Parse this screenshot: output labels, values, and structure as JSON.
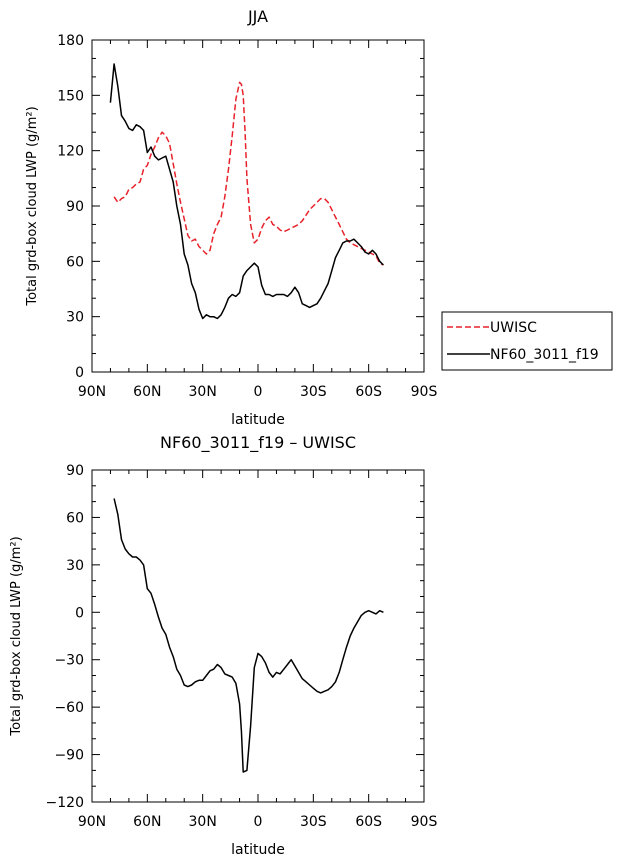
{
  "chart_data": [
    {
      "type": "line",
      "title": "JJA",
      "xlabel": "latitude",
      "ylabel": "Total grd-box cloud LWP (g/m²)",
      "xlim": [
        90,
        -90
      ],
      "ylim": [
        0,
        180
      ],
      "xticks": [
        90,
        60,
        30,
        0,
        -30,
        -60,
        -90
      ],
      "xtick_labels": [
        "90N",
        "60N",
        "30N",
        "0",
        "30S",
        "60S",
        "90S"
      ],
      "yticks": [
        0,
        30,
        60,
        90,
        120,
        150,
        180
      ],
      "ytick_labels": [
        "0",
        "30",
        "60",
        "90",
        "120",
        "150",
        "180"
      ],
      "legend_position": "right",
      "series": [
        {
          "name": "UWISC",
          "color": "#e8222a",
          "dash": "dashed",
          "x": [
            78,
            76,
            74,
            72,
            70,
            68,
            66,
            64,
            62,
            60,
            58,
            56,
            54,
            52,
            50,
            48,
            46,
            44,
            42,
            40,
            38,
            36,
            34,
            32,
            30,
            28,
            26,
            24,
            22,
            20,
            18,
            16,
            14,
            12,
            10,
            9,
            8,
            7,
            6,
            4,
            2,
            0,
            -2,
            -4,
            -6,
            -8,
            -10,
            -12,
            -14,
            -16,
            -18,
            -20,
            -22,
            -24,
            -26,
            -28,
            -30,
            -32,
            -34,
            -36,
            -38,
            -40,
            -42,
            -44,
            -46,
            -48,
            -50,
            -52,
            -54,
            -56,
            -58,
            -60,
            -62,
            -64,
            -66,
            -68
          ],
          "values": [
            95,
            92,
            94,
            95,
            99,
            100,
            102,
            103,
            110,
            112,
            118,
            122,
            127,
            130,
            128,
            124,
            113,
            102,
            92,
            83,
            74,
            71,
            72,
            68,
            66,
            64,
            66,
            75,
            80,
            84,
            95,
            110,
            128,
            148,
            157,
            156,
            150,
            130,
            105,
            80,
            70,
            72,
            78,
            82,
            84,
            80,
            79,
            77,
            76,
            77,
            78,
            79,
            80,
            82,
            85,
            88,
            90,
            92,
            94,
            94,
            92,
            88,
            84,
            80,
            76,
            72,
            70,
            69,
            68,
            67,
            66,
            65,
            64,
            63,
            59,
            58
          ]
        },
        {
          "name": "NF60_3011_f19",
          "color": "#000000",
          "dash": "solid",
          "x": [
            80,
            78,
            76,
            74,
            72,
            70,
            68,
            66,
            64,
            62,
            60,
            58,
            56,
            54,
            52,
            50,
            48,
            46,
            44,
            42,
            40,
            38,
            36,
            34,
            32,
            30,
            28,
            26,
            24,
            22,
            20,
            18,
            16,
            14,
            12,
            10,
            8,
            6,
            4,
            2,
            0,
            -2,
            -4,
            -6,
            -8,
            -10,
            -12,
            -14,
            -16,
            -18,
            -20,
            -22,
            -24,
            -26,
            -28,
            -30,
            -32,
            -34,
            -36,
            -38,
            -40,
            -42,
            -44,
            -46,
            -48,
            -50,
            -52,
            -54,
            -56,
            -58,
            -60,
            -62,
            -64,
            -66,
            -68
          ],
          "values": [
            146,
            167,
            155,
            139,
            136,
            132,
            131,
            134,
            133,
            131,
            119,
            122,
            117,
            115,
            116,
            117,
            110,
            103,
            90,
            80,
            64,
            58,
            48,
            43,
            34,
            29,
            31,
            30,
            30,
            29,
            31,
            35,
            40,
            42,
            41,
            43,
            52,
            55,
            57,
            59,
            57,
            47,
            42,
            42,
            41,
            42,
            42,
            42,
            41,
            43,
            46,
            43,
            37,
            36,
            35,
            36,
            37,
            40,
            44,
            48,
            55,
            62,
            66,
            70,
            71,
            71,
            72,
            70,
            68,
            65,
            64,
            66,
            64,
            60,
            58
          ]
        }
      ]
    },
    {
      "type": "line",
      "title": "NF60_3011_f19 – UWISC",
      "xlabel": "latitude",
      "ylabel": "Total grd-box cloud LWP (g/m²)",
      "xlim": [
        90,
        -90
      ],
      "ylim": [
        -120,
        90
      ],
      "xticks": [
        90,
        60,
        30,
        0,
        -30,
        -60,
        -90
      ],
      "xtick_labels": [
        "90N",
        "60N",
        "30N",
        "0",
        "30S",
        "60S",
        "90S"
      ],
      "yticks": [
        -120,
        -90,
        -60,
        -30,
        0,
        30,
        60,
        90
      ],
      "ytick_labels": [
        "−120",
        "−90",
        "−60",
        "−30",
        "0",
        "30",
        "60",
        "90"
      ],
      "series": [
        {
          "color": "#000000",
          "dash": "solid",
          "x": [
            78,
            76,
            74,
            72,
            70,
            68,
            66,
            64,
            62,
            60,
            58,
            56,
            54,
            52,
            50,
            48,
            46,
            44,
            42,
            40,
            38,
            36,
            34,
            32,
            30,
            28,
            26,
            24,
            22,
            20,
            18,
            16,
            14,
            12,
            10,
            9,
            8,
            6,
            4,
            2,
            0,
            -2,
            -4,
            -6,
            -8,
            -10,
            -12,
            -14,
            -16,
            -18,
            -20,
            -22,
            -24,
            -26,
            -28,
            -30,
            -32,
            -34,
            -36,
            -38,
            -40,
            -42,
            -44,
            -46,
            -48,
            -50,
            -52,
            -54,
            -56,
            -58,
            -60,
            -62,
            -64,
            -66,
            -68
          ],
          "values": [
            72,
            62,
            46,
            40,
            37,
            35,
            35,
            33,
            30,
            15,
            12,
            5,
            -3,
            -10,
            -14,
            -22,
            -28,
            -36,
            -40,
            -46,
            -47,
            -46,
            -44,
            -43,
            -43,
            -40,
            -37,
            -36,
            -33,
            -35,
            -39,
            -40,
            -41,
            -45,
            -58,
            -75,
            -101,
            -100,
            -72,
            -35,
            -26,
            -28,
            -32,
            -38,
            -41,
            -38,
            -39,
            -36,
            -33,
            -30,
            -34,
            -38,
            -42,
            -44,
            -46,
            -48,
            -50,
            -51,
            -50,
            -49,
            -47,
            -44,
            -38,
            -30,
            -22,
            -15,
            -10,
            -6,
            -2,
            0,
            1,
            0,
            -1,
            1,
            0
          ]
        }
      ]
    }
  ]
}
